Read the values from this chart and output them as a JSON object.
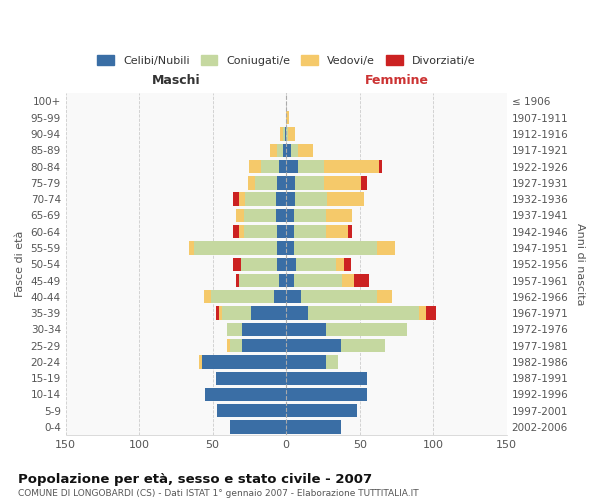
{
  "age_groups": [
    "0-4",
    "5-9",
    "10-14",
    "15-19",
    "20-24",
    "25-29",
    "30-34",
    "35-39",
    "40-44",
    "45-49",
    "50-54",
    "55-59",
    "60-64",
    "65-69",
    "70-74",
    "75-79",
    "80-84",
    "85-89",
    "90-94",
    "95-99",
    "100+"
  ],
  "birth_years": [
    "2002-2006",
    "1997-2001",
    "1992-1996",
    "1987-1991",
    "1982-1986",
    "1977-1981",
    "1972-1976",
    "1967-1971",
    "1962-1966",
    "1957-1961",
    "1952-1956",
    "1947-1951",
    "1942-1946",
    "1937-1941",
    "1932-1936",
    "1927-1931",
    "1922-1926",
    "1917-1921",
    "1912-1916",
    "1907-1911",
    "≤ 1906"
  ],
  "maschi": {
    "celibi": [
      38,
      47,
      55,
      48,
      57,
      30,
      30,
      24,
      8,
      5,
      6,
      6,
      6,
      7,
      7,
      6,
      5,
      2,
      1,
      0,
      0
    ],
    "coniugati": [
      0,
      0,
      0,
      0,
      0,
      8,
      10,
      20,
      43,
      27,
      25,
      57,
      23,
      22,
      21,
      15,
      12,
      4,
      1,
      0,
      0
    ],
    "vedovi": [
      0,
      0,
      0,
      0,
      2,
      2,
      0,
      2,
      5,
      0,
      0,
      3,
      3,
      5,
      4,
      5,
      8,
      5,
      2,
      0,
      0
    ],
    "divorziati": [
      0,
      0,
      0,
      0,
      0,
      0,
      0,
      2,
      0,
      2,
      5,
      0,
      4,
      0,
      4,
      0,
      0,
      0,
      0,
      0,
      0
    ]
  },
  "femmine": {
    "nubili": [
      37,
      48,
      55,
      55,
      27,
      37,
      27,
      15,
      10,
      5,
      7,
      5,
      5,
      5,
      6,
      6,
      8,
      3,
      0,
      0,
      0
    ],
    "coniugate": [
      0,
      0,
      0,
      0,
      8,
      30,
      55,
      75,
      52,
      33,
      27,
      57,
      22,
      22,
      22,
      20,
      18,
      5,
      1,
      0,
      0
    ],
    "vedove": [
      0,
      0,
      0,
      0,
      0,
      0,
      0,
      5,
      10,
      8,
      5,
      12,
      15,
      18,
      25,
      25,
      37,
      10,
      5,
      2,
      0
    ],
    "divorziate": [
      0,
      0,
      0,
      0,
      0,
      0,
      0,
      7,
      0,
      10,
      5,
      0,
      3,
      0,
      0,
      4,
      2,
      0,
      0,
      0,
      0
    ]
  },
  "colors": {
    "celibi": "#3a6ea5",
    "coniugati": "#c5d8a0",
    "vedovi": "#f5c96a",
    "divorziati": "#cc2222"
  },
  "title": "Popolazione per età, sesso e stato civile - 2007",
  "subtitle": "COMUNE DI LONGOBARDI (CS) - Dati ISTAT 1° gennaio 2007 - Elaborazione TUTTITALIA.IT",
  "xlabel_left": "Maschi",
  "xlabel_right": "Femmine",
  "ylabel_left": "Fasce di età",
  "ylabel_right": "Anni di nascita",
  "xlim": 150,
  "legend_labels": [
    "Celibi/Nubili",
    "Coniugati/e",
    "Vedovi/e",
    "Divorziati/e"
  ]
}
